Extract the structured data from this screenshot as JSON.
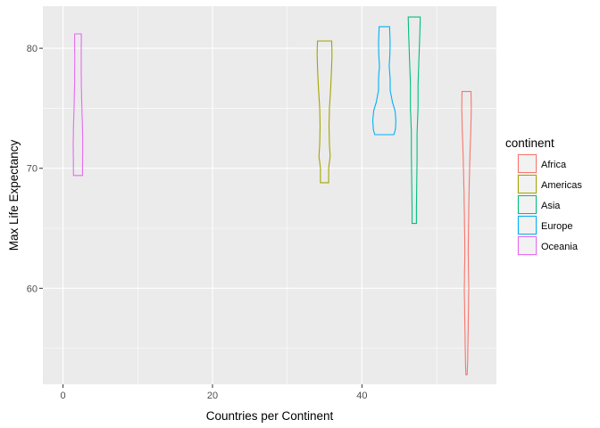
{
  "chart_data": {
    "type": "violin",
    "title": "",
    "xlabel": "Countries per Continent",
    "ylabel": "Max Life Expectancy",
    "xlim": [
      -2.7,
      58
    ],
    "ylim": [
      52,
      83.5
    ],
    "x_ticks": [
      0,
      20,
      40
    ],
    "y_ticks": [
      60,
      70,
      80
    ],
    "grid": true,
    "legend_title": "continent",
    "legend_position": "right",
    "series": [
      {
        "name": "Africa",
        "color": "#F8766D",
        "x": 54,
        "halfwidth": 0.75,
        "profile": [
          [
            52.8,
            0.12
          ],
          [
            54,
            0.2
          ],
          [
            57,
            0.3
          ],
          [
            60,
            0.4
          ],
          [
            63,
            0.3
          ],
          [
            65,
            0.35
          ],
          [
            68,
            0.45
          ],
          [
            71,
            0.6
          ],
          [
            73,
            0.75
          ],
          [
            75,
            0.85
          ],
          [
            76.4,
            0.8
          ]
        ]
      },
      {
        "name": "Americas",
        "color": "#A3A500",
        "x": 35,
        "halfwidth": 1.0,
        "profile": [
          [
            68.8,
            0.55
          ],
          [
            70,
            0.55
          ],
          [
            71,
            0.75
          ],
          [
            72,
            0.65
          ],
          [
            73.5,
            0.6
          ],
          [
            75,
            0.65
          ],
          [
            76.5,
            0.8
          ],
          [
            78,
            0.92
          ],
          [
            79.5,
            1.0
          ],
          [
            80.6,
            0.95
          ]
        ]
      },
      {
        "name": "Asia",
        "color": "#00BF7D",
        "x": 47,
        "halfwidth": 0.85,
        "profile": [
          [
            65.4,
            0.35
          ],
          [
            67,
            0.35
          ],
          [
            69,
            0.4
          ],
          [
            71,
            0.45
          ],
          [
            73,
            0.45
          ],
          [
            75,
            0.6
          ],
          [
            77,
            0.6
          ],
          [
            78.5,
            0.7
          ],
          [
            80,
            0.8
          ],
          [
            81.5,
            0.9
          ],
          [
            82.6,
            0.95
          ]
        ]
      },
      {
        "name": "Europe",
        "color": "#00B0F6",
        "x": 43,
        "halfwidth": 1.55,
        "profile": [
          [
            72.8,
            0.82
          ],
          [
            73.2,
            0.95
          ],
          [
            74,
            1.0
          ],
          [
            74.8,
            0.92
          ],
          [
            75.5,
            0.7
          ],
          [
            76.5,
            0.5
          ],
          [
            77.5,
            0.5
          ],
          [
            78.5,
            0.42
          ],
          [
            79.5,
            0.48
          ],
          [
            80.5,
            0.5
          ],
          [
            81.8,
            0.45
          ]
        ]
      },
      {
        "name": "Oceania",
        "color": "#E76BF3",
        "x": 2,
        "halfwidth": 0.75,
        "profile": [
          [
            69.4,
            0.8
          ],
          [
            70.5,
            0.82
          ],
          [
            72,
            0.85
          ],
          [
            73.5,
            0.8
          ],
          [
            75,
            0.7
          ],
          [
            77,
            0.6
          ],
          [
            79,
            0.58
          ],
          [
            81.2,
            0.6
          ]
        ]
      }
    ]
  }
}
